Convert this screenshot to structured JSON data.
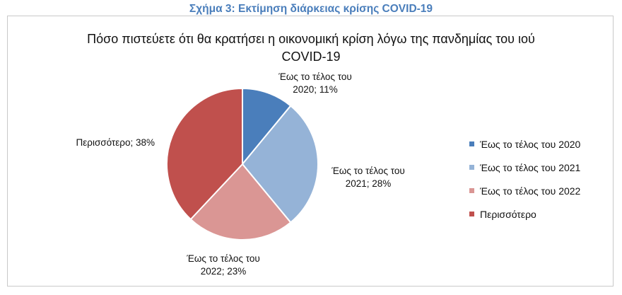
{
  "figure_caption": "Σχήμα 3: Εκτίμηση διάρκειας κρίσης COVID-19",
  "chart_data": {
    "type": "pie",
    "title": "Πόσο πιστεύετε ότι θα κρατήσει η οικονομική κρίση λόγω της πανδημίας του ιού COVID-19",
    "title_lines": [
      "Πόσο πιστεύετε ότι θα κρατήσει η οικονομική κρίση λόγω της πανδημίας του ιού",
      "COVID-19"
    ],
    "unit": "%",
    "legend_position": "right",
    "slices": [
      {
        "name": "Έως το τέλος του 2020",
        "value": 11,
        "color": "#4a7ebb",
        "data_label": [
          "Έως το τέλος του",
          "2020; 11%"
        ]
      },
      {
        "name": "Έως το τέλος του 2021",
        "value": 28,
        "color": "#95b3d7",
        "data_label": [
          "Έως το τέλος του",
          "2021; 28%"
        ]
      },
      {
        "name": "Έως το τέλος του 2022",
        "value": 23,
        "color": "#da9694",
        "data_label": [
          "Έως το τέλος του",
          "2022; 23%"
        ]
      },
      {
        "name": "Περισσότερο",
        "value": 38,
        "color": "#c0504d",
        "data_label": [
          "Περισσότερο; 38%"
        ]
      }
    ]
  }
}
